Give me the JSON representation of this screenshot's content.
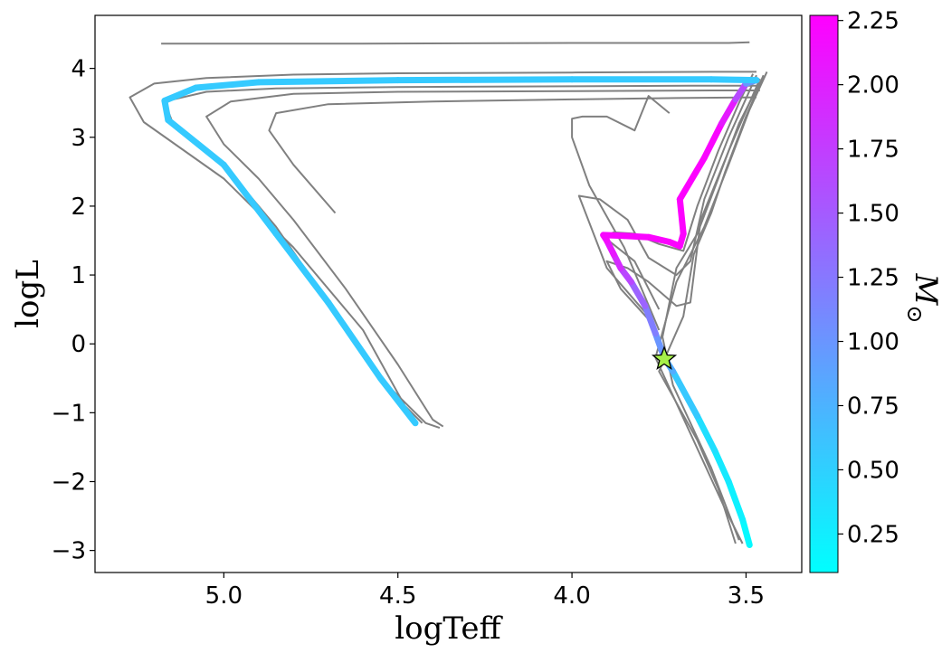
{
  "chart_data": {
    "type": "line",
    "xlabel": "logTeff",
    "ylabel": "logL",
    "colorbar_label": "M",
    "colorbar_label_sub": "⊙",
    "x_inverted": true,
    "xlim": [
      5.37,
      3.34
    ],
    "ylim": [
      -3.32,
      4.77
    ],
    "x_ticks": [
      {
        "v": 5.0,
        "label": "5.0"
      },
      {
        "v": 4.5,
        "label": "4.5"
      },
      {
        "v": 4.0,
        "label": "4.0"
      },
      {
        "v": 3.5,
        "label": "3.5"
      }
    ],
    "y_ticks": [
      {
        "v": 4,
        "label": "4"
      },
      {
        "v": 3,
        "label": "3"
      },
      {
        "v": 2,
        "label": "2"
      },
      {
        "v": 1,
        "label": "1"
      },
      {
        "v": 0,
        "label": "0"
      },
      {
        "v": -1,
        "label": "−1"
      },
      {
        "v": -2,
        "label": "−2"
      },
      {
        "v": -3,
        "label": "−3"
      }
    ],
    "colorbar_range": [
      0.1,
      2.27
    ],
    "colorbar_ticks": [
      {
        "v": 0.25,
        "label": "0.25"
      },
      {
        "v": 0.5,
        "label": "0.50"
      },
      {
        "v": 0.75,
        "label": "0.75"
      },
      {
        "v": 1.0,
        "label": "1.00"
      },
      {
        "v": 1.25,
        "label": "1.25"
      },
      {
        "v": 1.5,
        "label": "1.50"
      },
      {
        "v": 1.75,
        "label": "1.75"
      },
      {
        "v": 2.0,
        "label": "2.00"
      },
      {
        "v": 2.25,
        "label": "2.25"
      }
    ],
    "colormap": "cool",
    "grid": false,
    "background_color": "#808080",
    "marker_star": {
      "x": 3.735,
      "y": -0.22,
      "color": "#a6f04a"
    },
    "background_tracks": [
      {
        "name": "track-a",
        "points": [
          [
            3.49,
            4.38
          ],
          [
            3.55,
            4.37
          ],
          [
            4.0,
            4.37
          ],
          [
            4.6,
            4.36
          ],
          [
            5.18,
            4.36
          ]
        ]
      },
      {
        "name": "track-b",
        "points": [
          [
            3.47,
            3.95
          ],
          [
            3.6,
            3.95
          ],
          [
            4.0,
            3.94
          ],
          [
            4.5,
            3.93
          ],
          [
            4.8,
            3.91
          ],
          [
            5.05,
            3.86
          ],
          [
            5.2,
            3.78
          ],
          [
            5.27,
            3.58
          ],
          [
            5.23,
            3.22
          ],
          [
            5.0,
            2.4
          ],
          [
            4.8,
            1.4
          ],
          [
            4.6,
            0.2
          ],
          [
            4.48,
            -0.9
          ],
          [
            4.43,
            -1.15
          ]
        ]
      },
      {
        "name": "track-c",
        "points": [
          [
            3.46,
            3.75
          ],
          [
            3.6,
            3.75
          ],
          [
            4.0,
            3.74
          ],
          [
            4.5,
            3.73
          ],
          [
            4.85,
            3.71
          ],
          [
            5.05,
            3.66
          ],
          [
            5.17,
            3.52
          ],
          [
            5.15,
            3.25
          ],
          [
            5.0,
            2.6
          ],
          [
            4.85,
            1.7
          ],
          [
            4.7,
            0.6
          ],
          [
            4.55,
            -0.5
          ],
          [
            4.42,
            -1.15
          ],
          [
            4.38,
            -1.22
          ]
        ]
      },
      {
        "name": "track-d",
        "points": [
          [
            3.46,
            3.68
          ],
          [
            3.6,
            3.68
          ],
          [
            4.0,
            3.67
          ],
          [
            4.5,
            3.66
          ],
          [
            4.8,
            3.63
          ],
          [
            4.98,
            3.52
          ],
          [
            5.05,
            3.3
          ],
          [
            5.0,
            2.9
          ],
          [
            4.9,
            2.4
          ],
          [
            4.8,
            1.8
          ],
          [
            4.65,
            0.8
          ],
          [
            4.5,
            -0.3
          ],
          [
            4.4,
            -1.1
          ],
          [
            4.37,
            -1.2
          ]
        ]
      },
      {
        "name": "track-e",
        "points": [
          [
            3.47,
            3.58
          ],
          [
            3.7,
            3.57
          ],
          [
            4.0,
            3.55
          ],
          [
            4.4,
            3.52
          ],
          [
            4.7,
            3.48
          ],
          [
            4.85,
            3.35
          ],
          [
            4.87,
            3.1
          ],
          [
            4.8,
            2.6
          ],
          [
            4.68,
            1.9
          ]
        ]
      },
      {
        "name": "track-f",
        "points": [
          [
            3.72,
            3.35
          ],
          [
            3.78,
            3.6
          ],
          [
            3.82,
            3.1
          ],
          [
            3.9,
            3.3
          ],
          [
            3.97,
            3.3
          ],
          [
            4.0,
            3.27
          ],
          [
            4.0,
            3.0
          ],
          [
            3.95,
            2.3
          ],
          [
            3.85,
            1.4
          ],
          [
            3.75,
            0.2
          ]
        ]
      },
      {
        "name": "track-g",
        "points": [
          [
            3.48,
            3.92
          ],
          [
            3.52,
            3.5
          ],
          [
            3.58,
            2.8
          ],
          [
            3.64,
            2.0
          ],
          [
            3.68,
            1.35
          ],
          [
            3.75,
            1.45
          ],
          [
            3.82,
            1.6
          ],
          [
            3.88,
            1.62
          ],
          [
            3.91,
            1.56
          ],
          [
            3.82,
            1.2
          ],
          [
            3.75,
            0.5
          ]
        ]
      },
      {
        "name": "track-h",
        "points": [
          [
            3.47,
            3.9
          ],
          [
            3.55,
            3.0
          ],
          [
            3.62,
            2.1
          ],
          [
            3.66,
            1.2
          ],
          [
            3.7,
            1.0
          ],
          [
            3.78,
            1.25
          ],
          [
            3.84,
            1.8
          ],
          [
            3.92,
            2.1
          ],
          [
            3.98,
            2.15
          ],
          [
            3.9,
            1.1
          ],
          [
            3.78,
            0.4
          ]
        ]
      },
      {
        "name": "track-i",
        "points": [
          [
            3.46,
            3.85
          ],
          [
            3.55,
            2.8
          ],
          [
            3.63,
            1.8
          ],
          [
            3.66,
            0.6
          ],
          [
            3.7,
            0.55
          ],
          [
            3.78,
            0.9
          ],
          [
            3.84,
            1.1
          ],
          [
            3.9,
            1.2
          ],
          [
            3.86,
            0.8
          ],
          [
            3.77,
            0.3
          ]
        ]
      },
      {
        "name": "track-j",
        "points": [
          [
            3.45,
            3.9
          ],
          [
            3.5,
            3.3
          ],
          [
            3.56,
            2.5
          ],
          [
            3.6,
            1.9
          ],
          [
            3.65,
            1.3
          ],
          [
            3.68,
            0.4
          ],
          [
            3.75,
            -0.4
          ],
          [
            3.64,
            -1.4
          ],
          [
            3.58,
            -2.1
          ],
          [
            3.53,
            -2.9
          ]
        ]
      },
      {
        "name": "track-k",
        "points": [
          [
            3.46,
            3.8
          ],
          [
            3.52,
            3.2
          ],
          [
            3.58,
            2.4
          ],
          [
            3.64,
            1.6
          ],
          [
            3.7,
            1.1
          ],
          [
            3.74,
            0.1
          ],
          [
            3.71,
            -0.6
          ],
          [
            3.6,
            -1.8
          ],
          [
            3.52,
            -2.85
          ]
        ]
      },
      {
        "name": "track-l",
        "points": [
          [
            3.44,
            3.95
          ],
          [
            3.49,
            3.4
          ],
          [
            3.55,
            2.6
          ],
          [
            3.62,
            1.7
          ],
          [
            3.7,
            0.9
          ],
          [
            3.76,
            -0.2
          ],
          [
            3.66,
            -1.3
          ],
          [
            3.56,
            -2.4
          ],
          [
            3.51,
            -2.9
          ]
        ]
      }
    ],
    "highlight_track": [
      [
        3.49,
        -2.92,
        0.12
      ],
      [
        3.51,
        -2.55,
        0.18
      ],
      [
        3.55,
        -2.0,
        0.25
      ],
      [
        3.59,
        -1.55,
        0.32
      ],
      [
        3.64,
        -1.05,
        0.42
      ],
      [
        3.71,
        -0.4,
        0.7
      ],
      [
        3.735,
        -0.2,
        0.9
      ],
      [
        3.76,
        0.15,
        1.1
      ],
      [
        3.79,
        0.55,
        1.3
      ],
      [
        3.83,
        0.9,
        1.55
      ],
      [
        3.86,
        1.1,
        1.8
      ],
      [
        3.88,
        1.3,
        2.0
      ],
      [
        3.9,
        1.5,
        2.15
      ],
      [
        3.91,
        1.58,
        2.2
      ],
      [
        3.85,
        1.57,
        2.22
      ],
      [
        3.78,
        1.55,
        2.24
      ],
      [
        3.72,
        1.48,
        2.24
      ],
      [
        3.69,
        1.42,
        2.25
      ],
      [
        3.68,
        1.6,
        2.25
      ],
      [
        3.69,
        2.1,
        2.25
      ],
      [
        3.62,
        2.7,
        2.25
      ],
      [
        3.57,
        3.2,
        2.2
      ],
      [
        3.53,
        3.55,
        1.9
      ],
      [
        3.5,
        3.78,
        1.4
      ],
      [
        3.47,
        3.83,
        0.55
      ],
      [
        3.6,
        3.84,
        0.55
      ],
      [
        4.0,
        3.84,
        0.55
      ],
      [
        4.5,
        3.83,
        0.55
      ],
      [
        4.9,
        3.8,
        0.55
      ],
      [
        5.08,
        3.72,
        0.55
      ],
      [
        5.17,
        3.53,
        0.55
      ],
      [
        5.16,
        3.25,
        0.55
      ],
      [
        5.0,
        2.6,
        0.55
      ],
      [
        4.85,
        1.6,
        0.55
      ],
      [
        4.7,
        0.6,
        0.55
      ],
      [
        4.55,
        -0.5,
        0.55
      ],
      [
        4.45,
        -1.15,
        0.55
      ]
    ]
  }
}
